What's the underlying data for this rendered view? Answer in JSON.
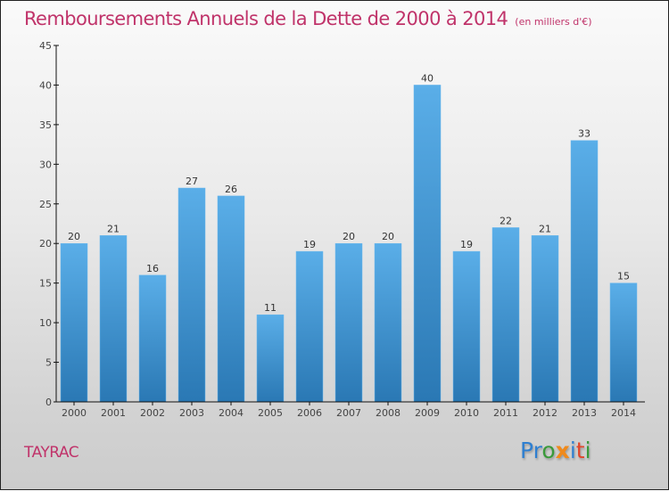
{
  "header": {
    "title": "Remboursements Annuels de la Dette de 2000 à 2014",
    "subtitle": "(en milliers d'€)"
  },
  "footer": {
    "place": "TAYRAC",
    "logo": {
      "letters": [
        {
          "char": "P",
          "color": "#2f7fd0"
        },
        {
          "char": "r",
          "color": "#2f7fd0"
        },
        {
          "char": "o",
          "color": "#3a9a3a"
        },
        {
          "char": "x",
          "color": "#f08a1c"
        },
        {
          "char": "i",
          "color": "#2f7fd0"
        },
        {
          "char": "t",
          "color": "#e2452a"
        },
        {
          "char": "i",
          "color": "#3a9a3a"
        }
      ]
    }
  },
  "colors": {
    "title": "#c0336a",
    "bar_top": "#5aaee8",
    "bar_bottom": "#2a78b4",
    "axis": "#111111"
  },
  "chart_data": {
    "type": "bar",
    "title": "Remboursements Annuels de la Dette de 2000 à 2014",
    "subtitle": "(en milliers d'€)",
    "xlabel": "",
    "ylabel": "",
    "categories": [
      "2000",
      "2001",
      "2002",
      "2003",
      "2004",
      "2005",
      "2006",
      "2007",
      "2008",
      "2009",
      "2010",
      "2011",
      "2012",
      "2013",
      "2014"
    ],
    "values": [
      20,
      21,
      16,
      27,
      26,
      11,
      19,
      20,
      20,
      40,
      19,
      22,
      21,
      33,
      15
    ],
    "ylim": [
      0,
      45
    ],
    "yticks": [
      0,
      5,
      10,
      15,
      20,
      25,
      30,
      35,
      40,
      45
    ],
    "grid": false,
    "legend": "none",
    "data_labels": true
  }
}
